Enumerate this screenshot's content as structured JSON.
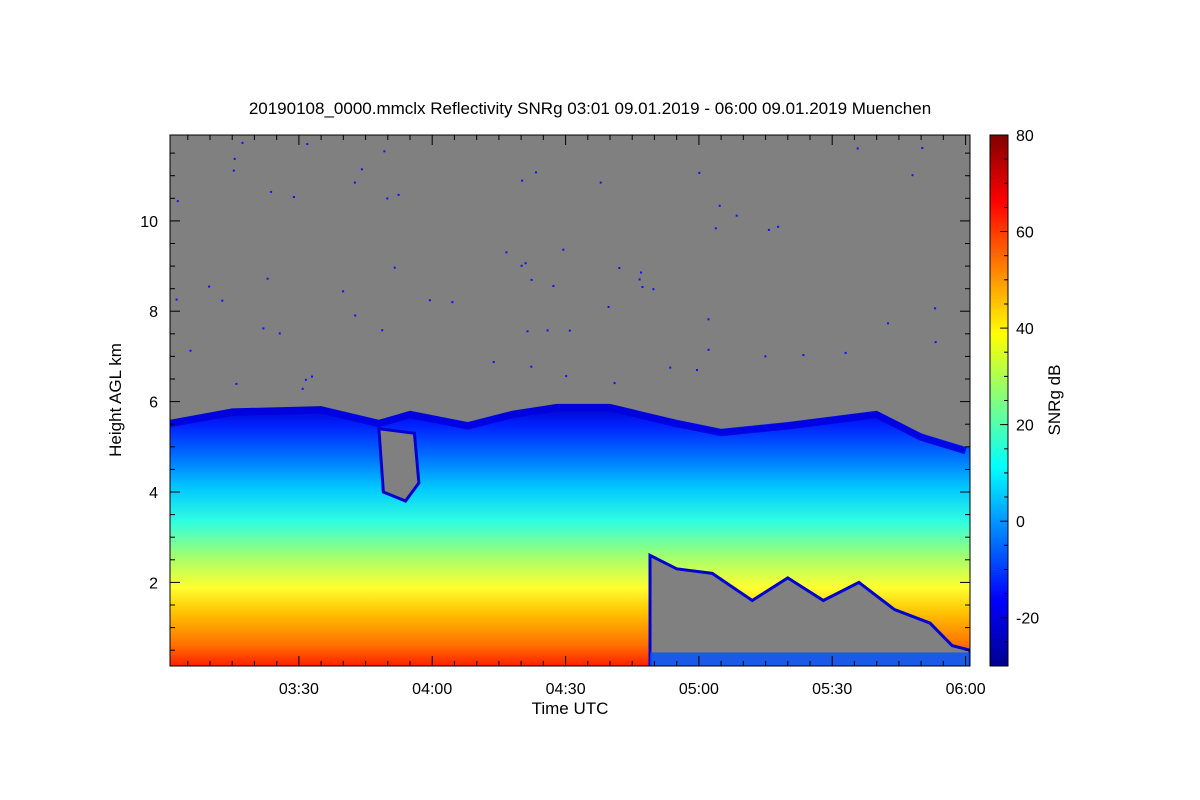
{
  "chart_data": {
    "type": "heatmap",
    "title": "20190108_0000.mmclx Reflectivity SNRg   03:01 09.01.2019 - 06:00 09.01.2019 Muenchen",
    "xlabel": "Time UTC",
    "ylabel": "Height AGL km",
    "x_range": [
      "03:01",
      "06:01"
    ],
    "y_range_km": [
      0.15,
      11.9
    ],
    "x_ticks": [
      {
        "label": "03:30",
        "minutes": 210
      },
      {
        "label": "04:00",
        "minutes": 240
      },
      {
        "label": "04:30",
        "minutes": 270
      },
      {
        "label": "05:00",
        "minutes": 300
      },
      {
        "label": "05:30",
        "minutes": 330
      },
      {
        "label": "06:00",
        "minutes": 360
      }
    ],
    "y_ticks": [
      {
        "label": "2",
        "value": 2
      },
      {
        "label": "4",
        "value": 4
      },
      {
        "label": "6",
        "value": 6
      },
      {
        "label": "8",
        "value": 8
      },
      {
        "label": "10",
        "value": 10
      }
    ],
    "colorbar": {
      "label": "SNRg dB",
      "range": [
        -30,
        80
      ],
      "ticks": [
        {
          "label": "-20",
          "value": -20
        },
        {
          "label": "0",
          "value": 0
        },
        {
          "label": "20",
          "value": 20
        },
        {
          "label": "40",
          "value": 40
        },
        {
          "label": "60",
          "value": 60
        },
        {
          "label": "80",
          "value": 80
        }
      ],
      "colormap": [
        "#00008f",
        "#0000ff",
        "#0080ff",
        "#00ffff",
        "#80ff80",
        "#ffff00",
        "#ff8000",
        "#ff0000",
        "#800000"
      ]
    },
    "background_color": "#808080",
    "cloud_top_km": [
      {
        "t": 181,
        "h": 5.6
      },
      {
        "t": 195,
        "h": 5.85
      },
      {
        "t": 215,
        "h": 5.9
      },
      {
        "t": 228,
        "h": 5.6
      },
      {
        "t": 235,
        "h": 5.8
      },
      {
        "t": 248,
        "h": 5.55
      },
      {
        "t": 258,
        "h": 5.8
      },
      {
        "t": 268,
        "h": 5.95
      },
      {
        "t": 280,
        "h": 5.95
      },
      {
        "t": 295,
        "h": 5.6
      },
      {
        "t": 305,
        "h": 5.4
      },
      {
        "t": 320,
        "h": 5.55
      },
      {
        "t": 340,
        "h": 5.8
      },
      {
        "t": 350,
        "h": 5.3
      },
      {
        "t": 360,
        "h": 5.0
      }
    ]
  }
}
